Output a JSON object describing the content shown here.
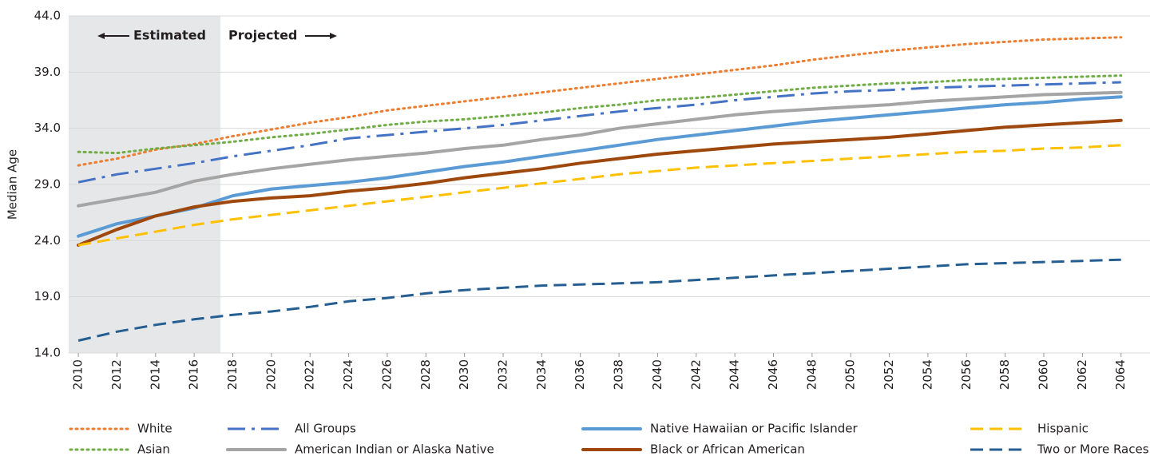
{
  "chart_data": {
    "type": "line",
    "y_label": "Median Age",
    "annotations": [
      "Estimated",
      "Projected"
    ],
    "x": [
      2010,
      2012,
      2014,
      2016,
      2018,
      2020,
      2022,
      2024,
      2026,
      2028,
      2030,
      2032,
      2034,
      2036,
      2038,
      2040,
      2042,
      2044,
      2046,
      2048,
      2050,
      2052,
      2054,
      2056,
      2058,
      2060,
      2062,
      2064
    ],
    "xlim": [
      2009.5,
      2065.5
    ],
    "xticks": [
      2010,
      2012,
      2014,
      2016,
      2018,
      2020,
      2022,
      2024,
      2026,
      2028,
      2030,
      2032,
      2034,
      2036,
      2038,
      2040,
      2042,
      2044,
      2046,
      2048,
      2050,
      2052,
      2054,
      2056,
      2058,
      2060,
      2062,
      2064
    ],
    "ylim": [
      14,
      44
    ],
    "yticks": [
      {
        "value": 14,
        "label": "14.0"
      },
      {
        "value": 19,
        "label": "19.0"
      },
      {
        "value": 24,
        "label": "24.0"
      },
      {
        "value": 29,
        "label": "29.0"
      },
      {
        "value": 34,
        "label": "34.0"
      },
      {
        "value": 39,
        "label": "39.0"
      },
      {
        "value": 44,
        "label": "44.0"
      }
    ],
    "grid": true,
    "series": [
      {
        "name": "White",
        "color": "#ed7d31",
        "style": "dotted",
        "values": [
          30.7,
          31.3,
          32.1,
          32.6,
          33.3,
          33.9,
          34.5,
          35.0,
          35.6,
          36.0,
          36.4,
          36.8,
          37.2,
          37.6,
          38.0,
          38.4,
          38.8,
          39.2,
          39.6,
          40.1,
          40.5,
          40.9,
          41.2,
          41.5,
          41.7,
          41.9,
          42.0,
          42.1
        ]
      },
      {
        "name": "Asian",
        "color": "#70ad47",
        "style": "dotted",
        "values": [
          31.9,
          31.8,
          32.2,
          32.5,
          32.8,
          33.2,
          33.5,
          33.9,
          34.3,
          34.6,
          34.8,
          35.1,
          35.4,
          35.8,
          36.1,
          36.5,
          36.7,
          37.0,
          37.3,
          37.6,
          37.8,
          38.0,
          38.1,
          38.3,
          38.4,
          38.5,
          38.6,
          38.7
        ]
      },
      {
        "name": "All Groups",
        "color": "#4472c4",
        "style": "dashdot",
        "values": [
          29.2,
          29.9,
          30.4,
          30.9,
          31.5,
          32.0,
          32.5,
          33.1,
          33.4,
          33.7,
          34.0,
          34.3,
          34.7,
          35.1,
          35.5,
          35.8,
          36.1,
          36.5,
          36.8,
          37.1,
          37.3,
          37.4,
          37.6,
          37.7,
          37.8,
          37.9,
          38.0,
          38.1
        ]
      },
      {
        "name": "American Indian or Alaska Native",
        "color": "#a5a5a5",
        "style": "solid",
        "values": [
          27.1,
          27.7,
          28.3,
          29.3,
          29.9,
          30.4,
          30.8,
          31.2,
          31.5,
          31.8,
          32.2,
          32.5,
          33.0,
          33.4,
          34.0,
          34.4,
          34.8,
          35.2,
          35.5,
          35.7,
          35.9,
          36.1,
          36.4,
          36.6,
          36.8,
          37.0,
          37.1,
          37.2
        ]
      },
      {
        "name": "Native Hawaiian or Pacific Islander",
        "color": "#5b9bd5",
        "style": "solid",
        "values": [
          24.4,
          25.5,
          26.2,
          26.9,
          28.0,
          28.6,
          28.9,
          29.2,
          29.6,
          30.1,
          30.6,
          31.0,
          31.5,
          32.0,
          32.5,
          33.0,
          33.4,
          33.8,
          34.2,
          34.6,
          34.9,
          35.2,
          35.5,
          35.8,
          36.1,
          36.3,
          36.6,
          36.8
        ]
      },
      {
        "name": "Black or African American",
        "color": "#9e480e",
        "style": "solid",
        "values": [
          23.6,
          25.0,
          26.2,
          27.0,
          27.5,
          27.8,
          28.0,
          28.4,
          28.7,
          29.1,
          29.6,
          30.0,
          30.4,
          30.9,
          31.3,
          31.7,
          32.0,
          32.3,
          32.6,
          32.8,
          33.0,
          33.2,
          33.5,
          33.8,
          34.1,
          34.3,
          34.5,
          34.7
        ]
      },
      {
        "name": "Hispanic",
        "color": "#ffc000",
        "style": "dashed",
        "values": [
          23.6,
          24.2,
          24.8,
          25.4,
          25.9,
          26.3,
          26.7,
          27.1,
          27.5,
          27.9,
          28.3,
          28.7,
          29.1,
          29.5,
          29.9,
          30.2,
          30.5,
          30.7,
          30.9,
          31.1,
          31.3,
          31.5,
          31.7,
          31.9,
          32.0,
          32.2,
          32.3,
          32.5
        ]
      },
      {
        "name": "Two or More Races",
        "color": "#255e91",
        "style": "dashed",
        "values": [
          15.1,
          15.9,
          16.5,
          17.0,
          17.4,
          17.7,
          18.1,
          18.6,
          18.9,
          19.3,
          19.6,
          19.8,
          20.0,
          20.1,
          20.2,
          20.3,
          20.5,
          20.7,
          20.9,
          21.1,
          21.3,
          21.5,
          21.7,
          21.9,
          22.0,
          22.1,
          22.2,
          22.3
        ]
      }
    ]
  }
}
